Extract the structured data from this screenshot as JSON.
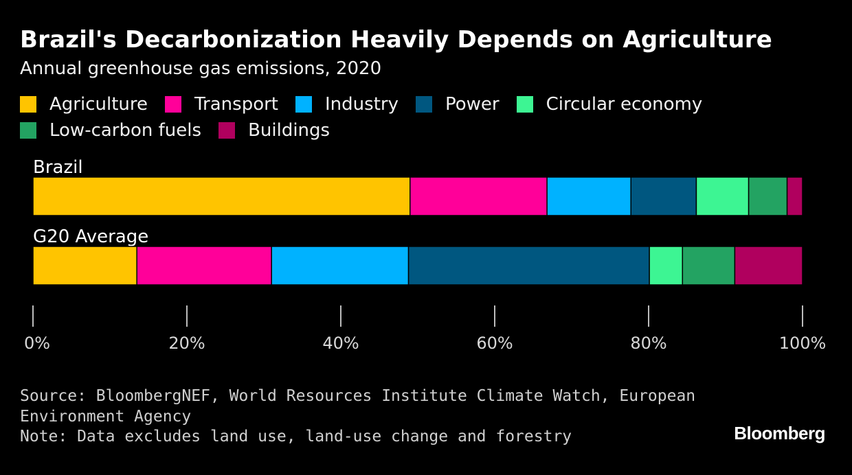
{
  "header": {
    "title": "Brazil's Decarbonization Heavily Depends on Agriculture",
    "subtitle": "Annual greenhouse gas emissions, 2020"
  },
  "legend_rows": [
    [
      "Agriculture",
      "Transport",
      "Industry",
      "Power",
      "Circular economy"
    ],
    [
      "Low-carbon fuels",
      "Buildings"
    ]
  ],
  "chart_data": {
    "type": "bar",
    "orientation": "horizontal",
    "stacked": true,
    "normalized": true,
    "categories": [
      "Brazil",
      "G20 Average"
    ],
    "series": [
      {
        "name": "Agriculture",
        "color": "#FFC400",
        "values": [
          49.0,
          13.5
        ]
      },
      {
        "name": "Transport",
        "color": "#FF0099",
        "values": [
          17.8,
          17.5
        ]
      },
      {
        "name": "Industry",
        "color": "#00B2FF",
        "values": [
          10.9,
          17.8
        ]
      },
      {
        "name": "Power",
        "color": "#005780",
        "values": [
          8.5,
          31.3
        ]
      },
      {
        "name": "Circular economy",
        "color": "#3DF593",
        "values": [
          6.8,
          4.3
        ]
      },
      {
        "name": "Low-carbon fuels",
        "color": "#23A362",
        "values": [
          5.0,
          6.8
        ]
      },
      {
        "name": "Buildings",
        "color": "#B0005E",
        "values": [
          2.0,
          8.8
        ]
      }
    ],
    "x_ticks": [
      "0%",
      "20%",
      "40%",
      "60%",
      "80%",
      "100%"
    ],
    "xlim": [
      0,
      100
    ],
    "grid": false,
    "legend_position": "top"
  },
  "footer": {
    "source_lines": [
      "Source: BloombergNEF, World Resources Institute Climate Watch, European",
      "Environment Agency"
    ],
    "note": "Note: Data excludes land use, land-use change and forestry",
    "logo": "Bloomberg"
  }
}
